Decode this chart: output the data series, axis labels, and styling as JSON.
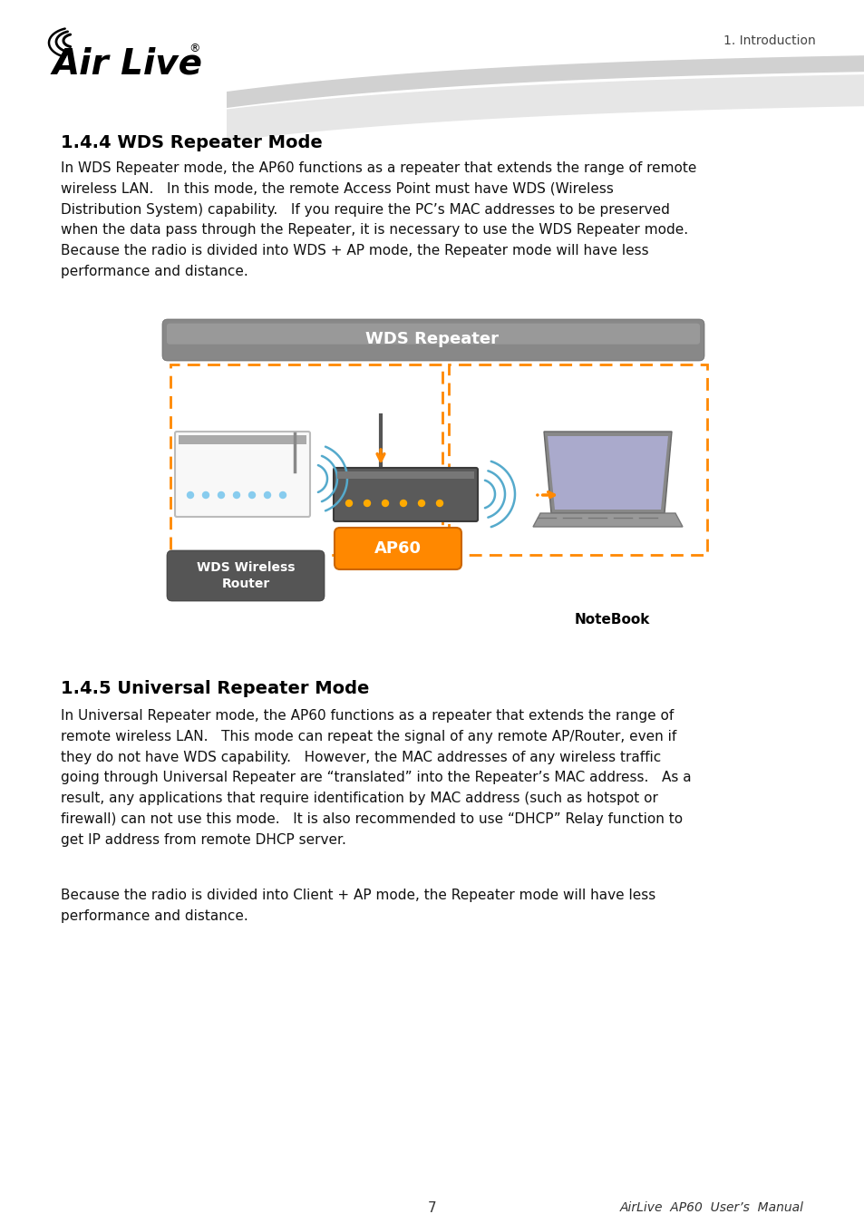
{
  "page_bg": "#ffffff",
  "header_text": "1. Introduction",
  "header_color": "#444444",
  "header_fontsize": 10,
  "section1_title": "1.4.4 WDS Repeater Mode",
  "section1_body": "In WDS Repeater mode, the AP60 functions as a repeater that extends the range of remote\nwireless LAN.   In this mode, the remote Access Point must have WDS (Wireless\nDistribution System) capability.   If you require the PC’s MAC addresses to be preserved\nwhen the data pass through the Repeater, it is necessary to use the WDS Repeater mode.\nBecause the radio is divided into WDS + AP mode, the Repeater mode will have less\nperformance and distance.",
  "section2_title": "1.4.5 Universal Repeater Mode",
  "section2_body1": "In Universal Repeater mode, the AP60 functions as a repeater that extends the range of\nremote wireless LAN.   This mode can repeat the signal of any remote AP/Router, even if\nthey do not have WDS capability.   However, the MAC addresses of any wireless traffic\ngoing through Universal Repeater are “translated” into the Repeater’s MAC address.   As a\nresult, any applications that require identification by MAC address (such as hotspot or\nfirewall) can not use this mode.   It is also recommended to use “DHCP” Relay function to\nget IP address from remote DHCP server.",
  "section2_body2": "Because the radio is divided into Client + AP mode, the Repeater mode will have less\nperformance and distance.",
  "footer_page": "7",
  "footer_manual": "AirLive  AP60  User’s  Manual",
  "title_fontsize": 14,
  "body_fontsize": 11,
  "body_color": "#111111",
  "title_color": "#000000",
  "diagram_label": "WDS Repeater",
  "ap60_label": "AP60",
  "router_label": "WDS Wireless\nRouter",
  "notebook_label": "NoteBook"
}
